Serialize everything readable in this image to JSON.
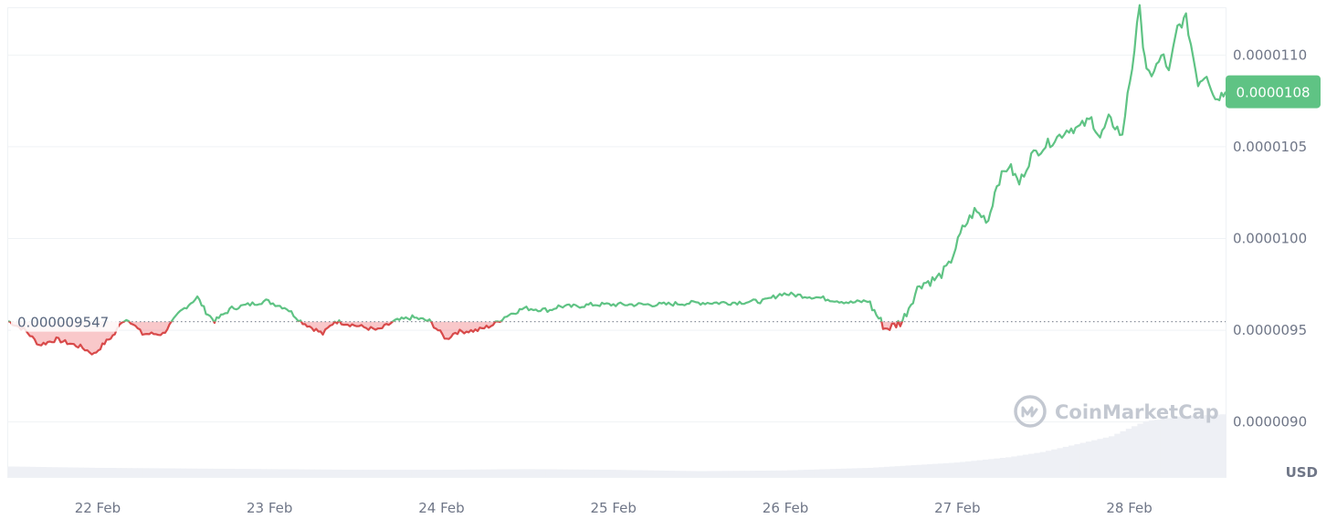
{
  "chart_data": {
    "type": "area",
    "currency_label": "USD",
    "watermark": "CoinMarketCap",
    "baseline": {
      "value": 9.547e-06,
      "label": "0.000009547"
    },
    "current_price": {
      "value": 1.08e-05,
      "label": "0.0000108"
    },
    "y_ticks": [
      {
        "value": 1.1e-05,
        "label": "0.0000110"
      },
      {
        "value": 1.05e-05,
        "label": "0.0000105"
      },
      {
        "value": 1e-05,
        "label": "0.0000100"
      },
      {
        "value": 9.5e-06,
        "label": "0.0000095"
      },
      {
        "value": 9e-06,
        "label": "0.0000090"
      }
    ],
    "ylim": [
      8.7e-06,
      1.13e-05
    ],
    "xlim": [
      0,
      7.08
    ],
    "x_ticks": [
      {
        "value": 0.52,
        "label": "22 Feb"
      },
      {
        "value": 1.52,
        "label": "23 Feb"
      },
      {
        "value": 2.52,
        "label": "24 Feb"
      },
      {
        "value": 3.52,
        "label": "25 Feb"
      },
      {
        "value": 4.52,
        "label": "26 Feb"
      },
      {
        "value": 5.52,
        "label": "27 Feb"
      },
      {
        "value": 6.52,
        "label": "28 Feb"
      }
    ],
    "colors": {
      "up": "#16c784",
      "up_line": "#5fc384",
      "down": "#d84a4a",
      "grid": "#eff2f5",
      "badge": "#5fc384"
    },
    "price_series": {
      "x": [
        0.0,
        0.1,
        0.18,
        0.28,
        0.42,
        0.5,
        0.56,
        0.62,
        0.66,
        0.7,
        0.78,
        0.9,
        1.0,
        1.1,
        1.15,
        1.2,
        1.3,
        1.5,
        1.62,
        1.7,
        1.83,
        1.9,
        2.0,
        2.15,
        2.25,
        2.35,
        2.45,
        2.55,
        2.6,
        2.73,
        2.82,
        2.9,
        3.0,
        3.15,
        3.2,
        3.3,
        3.4,
        3.6,
        3.8,
        4.0,
        4.2,
        4.4,
        4.5,
        4.7,
        4.9,
        5.0,
        5.1,
        5.14,
        5.2,
        5.25,
        5.3,
        5.4,
        5.47,
        5.55,
        5.62,
        5.7,
        5.75,
        5.82,
        5.88,
        5.95,
        6.02,
        6.1,
        6.17,
        6.22,
        6.3,
        6.35,
        6.4,
        6.45,
        6.48,
        6.51,
        6.55,
        6.58,
        6.6,
        6.62,
        6.65,
        6.72,
        6.75,
        6.8,
        6.85,
        6.92,
        6.97,
        7.02,
        7.08
      ],
      "y": [
        9.55e-06,
        9.5e-06,
        9.42e-06,
        9.45e-06,
        9.41e-06,
        9.37e-06,
        9.43e-06,
        9.48e-06,
        9.55e-06,
        9.56e-06,
        9.48e-06,
        9.48e-06,
        9.6e-06,
        9.68e-06,
        9.6e-06,
        9.55e-06,
        9.62e-06,
        9.66e-06,
        9.62e-06,
        9.55e-06,
        9.48e-06,
        9.55e-06,
        9.53e-06,
        9.5e-06,
        9.55e-06,
        9.57e-06,
        9.55e-06,
        9.45e-06,
        9.49e-06,
        9.5e-06,
        9.53e-06,
        9.58e-06,
        9.62e-06,
        9.61e-06,
        9.63e-06,
        9.63e-06,
        9.64e-06,
        9.64e-06,
        9.64e-06,
        9.65e-06,
        9.65e-06,
        9.66e-06,
        9.7e-06,
        9.68e-06,
        9.65e-06,
        9.66e-06,
        9.51e-06,
        9.52e-06,
        9.55e-06,
        9.65e-06,
        9.75e-06,
        9.78e-06,
        9.85e-06,
        1.005e-05,
        1.015e-05,
        1.01e-05,
        1.03e-05,
        1.04e-05,
        1.03e-05,
        1.045e-05,
        1.05e-05,
        1.055e-05,
        1.06e-05,
        1.06e-05,
        1.065e-05,
        1.055e-05,
        1.065e-05,
        1.06e-05,
        1.055e-05,
        1.08e-05,
        1.1e-05,
        1.13e-05,
        1.105e-05,
        1.09e-05,
        1.09e-05,
        1.1e-05,
        1.09e-05,
        1.115e-05,
        1.12e-05,
        1.085e-05,
        1.09e-05,
        1.076e-05,
        1.08e-05
      ]
    },
    "volume_series": {
      "x": [
        0.0,
        0.5,
        1.0,
        1.5,
        2.0,
        2.5,
        3.0,
        3.5,
        4.0,
        4.5,
        5.0,
        5.5,
        5.8,
        6.0,
        6.2,
        6.4,
        6.6,
        6.8,
        7.08
      ],
      "y": [
        0.16,
        0.14,
        0.13,
        0.12,
        0.11,
        0.11,
        0.12,
        0.11,
        0.09,
        0.1,
        0.14,
        0.22,
        0.3,
        0.38,
        0.5,
        0.62,
        0.85,
        0.92,
        0.96
      ]
    }
  }
}
